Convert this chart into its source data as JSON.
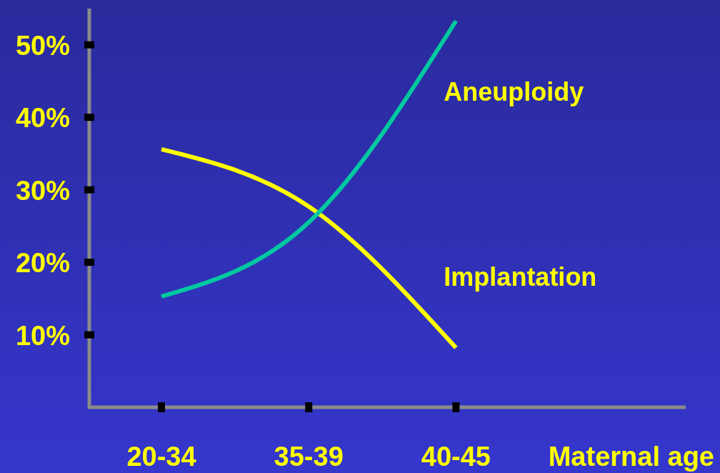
{
  "chart_data": {
    "type": "line",
    "xlabel": "Maternal age",
    "categories": [
      "20-34",
      "35-39",
      "40-45"
    ],
    "ylim": [
      0,
      55
    ],
    "yticks": [
      {
        "value": 10,
        "label": "10%"
      },
      {
        "value": 20,
        "label": "20%"
      },
      {
        "value": 30,
        "label": "30%"
      },
      {
        "value": 40,
        "label": "40%"
      },
      {
        "value": 50,
        "label": "50%"
      }
    ],
    "grid": false,
    "legend": false,
    "marker": "none",
    "line_style": "solid",
    "series": [
      {
        "name": "Implantation",
        "color": "#ffff00",
        "values": [
          35.6,
          27.7,
          8.2
        ]
      },
      {
        "name": "Aneuploidy",
        "color": "#00c8a0",
        "values": [
          15.3,
          25.5,
          53.3
        ]
      }
    ]
  }
}
